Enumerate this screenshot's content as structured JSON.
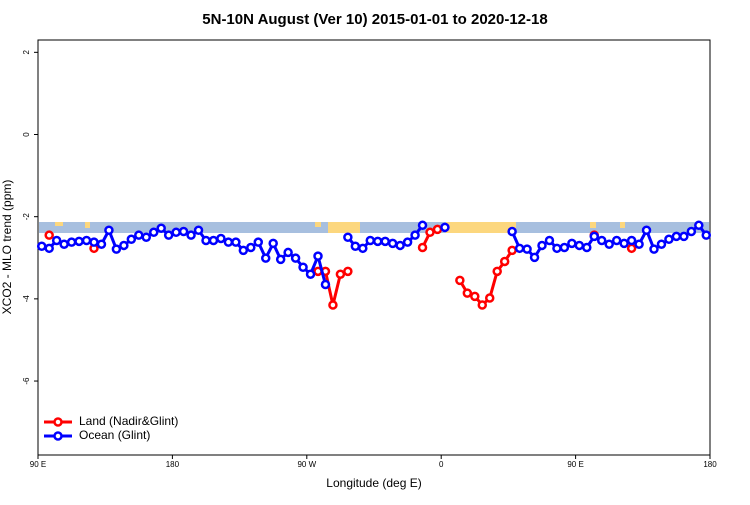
{
  "chart_data": {
    "type": "line",
    "title": "5N-10N August (Ver 10)   2015-01-01 to 2020-12-18",
    "x_label": "Longitude (deg E)",
    "y_label": "XCO2 - MLO trend (ppm)",
    "xlim": [
      90,
      540
    ],
    "ylim": [
      -7.8,
      2.3
    ],
    "xticks": [
      {
        "value": 90,
        "label": "90 E"
      },
      {
        "value": 180,
        "label": "180"
      },
      {
        "value": 270,
        "label": "90 W"
      },
      {
        "value": 360,
        "label": "0"
      },
      {
        "value": 450,
        "label": "90 E"
      },
      {
        "value": 540,
        "label": "180"
      }
    ],
    "yticks": [
      2,
      0,
      -2,
      -4,
      -6
    ],
    "legend": "bottom-left",
    "x": [
      92.5,
      97.5,
      102.5,
      107.5,
      112.5,
      117.5,
      122.5,
      127.5,
      132.5,
      137.5,
      142.5,
      147.5,
      152.5,
      157.5,
      162.5,
      167.5,
      172.5,
      177.5,
      182.5,
      187.5,
      192.5,
      197.5,
      202.5,
      207.5,
      212.5,
      217.5,
      222.5,
      227.5,
      232.5,
      237.5,
      242.5,
      247.5,
      252.5,
      257.5,
      262.5,
      267.5,
      272.5,
      277.5,
      282.5,
      287.5,
      292.5,
      297.5,
      302.5,
      307.5,
      312.5,
      317.5,
      322.5,
      327.5,
      332.5,
      337.5,
      342.5,
      347.5,
      352.5,
      357.5,
      362.5,
      367.5,
      372.5,
      377.5,
      382.5,
      387.5,
      392.5,
      397.5,
      402.5,
      407.5,
      412.5,
      417.5,
      422.5,
      427.5,
      432.5,
      437.5,
      442.5,
      447.5,
      452.5,
      457.5,
      462.5,
      467.5,
      472.5,
      477.5,
      482.5,
      487.5,
      492.5,
      497.5,
      502.5,
      507.5,
      512.5,
      517.5,
      522.5,
      527.5,
      532.5,
      537.5
    ],
    "series": [
      {
        "name": "Land (Nadir&Glint)",
        "color": "#ff0000",
        "values": [
          null,
          -2.45,
          null,
          null,
          null,
          null,
          null,
          -2.77,
          null,
          null,
          null,
          null,
          null,
          null,
          null,
          null,
          null,
          null,
          null,
          null,
          null,
          null,
          null,
          null,
          null,
          null,
          null,
          null,
          null,
          null,
          null,
          null,
          null,
          null,
          null,
          null,
          null,
          -3.33,
          -3.33,
          -4.15,
          -3.4,
          -3.33,
          null,
          null,
          null,
          null,
          null,
          null,
          null,
          null,
          null,
          -2.75,
          -2.38,
          -2.31,
          null,
          null,
          -3.55,
          -3.86,
          -3.94,
          -4.15,
          -3.98,
          -3.33,
          -3.09,
          -2.82,
          null,
          null,
          null,
          null,
          null,
          null,
          null,
          null,
          null,
          null,
          -2.45,
          null,
          null,
          null,
          null,
          -2.77,
          null,
          null,
          null,
          null,
          null,
          null,
          null,
          null,
          null,
          null
        ]
      },
      {
        "name": "Ocean (Glint)",
        "color": "#0000ff",
        "values": [
          -2.72,
          -2.77,
          -2.58,
          -2.67,
          -2.62,
          -2.6,
          -2.58,
          -2.62,
          -2.67,
          -2.33,
          -2.79,
          -2.7,
          -2.55,
          -2.45,
          -2.5,
          -2.38,
          -2.28,
          -2.45,
          -2.38,
          -2.36,
          -2.45,
          -2.33,
          -2.58,
          -2.58,
          -2.53,
          -2.62,
          -2.62,
          -2.82,
          -2.75,
          -2.62,
          -3.01,
          -2.65,
          -3.04,
          -2.87,
          -3.01,
          -3.23,
          -3.4,
          -2.96,
          -3.65,
          null,
          null,
          -2.5,
          -2.72,
          -2.77,
          -2.58,
          -2.6,
          -2.6,
          -2.65,
          -2.7,
          -2.62,
          -2.45,
          -2.21,
          null,
          null,
          -2.26,
          null,
          null,
          null,
          null,
          null,
          null,
          null,
          null,
          -2.36,
          -2.77,
          -2.79,
          -2.99,
          -2.7,
          -2.58,
          -2.77,
          -2.75,
          -2.65,
          -2.7,
          -2.75,
          -2.48,
          -2.58,
          -2.67,
          -2.58,
          -2.65,
          -2.58,
          -2.67,
          -2.33,
          -2.79,
          -2.67,
          -2.55,
          -2.48,
          -2.48,
          -2.36,
          -2.21,
          -2.45
        ]
      }
    ]
  }
}
